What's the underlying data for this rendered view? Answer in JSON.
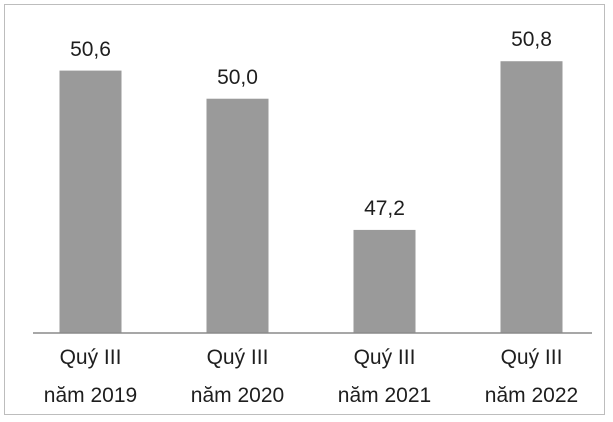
{
  "chart_data": {
    "type": "bar",
    "categories": [
      "Quý III\nnăm 2019",
      "Quý III\nnăm 2020",
      "Quý III\nnăm 2021",
      "Quý III\nnăm 2022"
    ],
    "values": [
      50.6,
      50.0,
      47.2,
      50.8
    ],
    "value_labels": [
      "50,6",
      "50,0",
      "47,2",
      "50,8"
    ],
    "color": "#9a9a9a",
    "ylim": [
      45,
      52
    ]
  }
}
